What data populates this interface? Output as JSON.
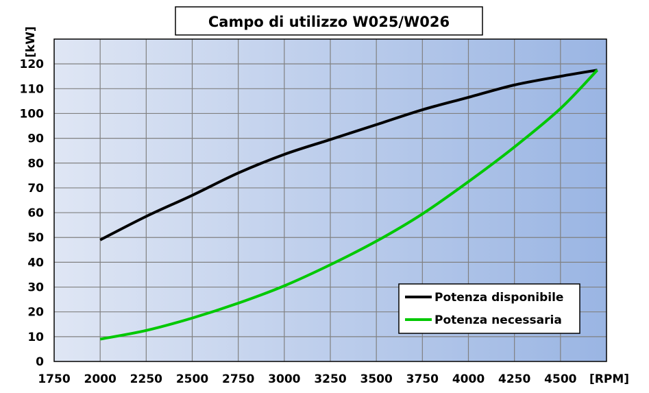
{
  "chart_data": {
    "type": "line",
    "title": "Campo di utilizzo W025/W026",
    "xlabel": "[RPM]",
    "ylabel": "[kW]",
    "xlim": [
      1750,
      4750
    ],
    "ylim": [
      0,
      130
    ],
    "xticks": [
      1750,
      2000,
      2250,
      2500,
      2750,
      3000,
      3250,
      3500,
      3750,
      4000,
      4250,
      4500
    ],
    "yticks": [
      0,
      10,
      20,
      30,
      40,
      50,
      60,
      70,
      80,
      90,
      100,
      110,
      120
    ],
    "grid": true,
    "legend_position": "bottom-right",
    "background": {
      "from": "#dfe6f4",
      "to": "#9ab5e3"
    },
    "series": [
      {
        "name": "Potenza disponibile",
        "color": "#000000",
        "x": [
          2000,
          2250,
          2500,
          2750,
          3000,
          3250,
          3500,
          3750,
          4000,
          4250,
          4500,
          4700
        ],
        "y": [
          49,
          58.5,
          67,
          76,
          83.5,
          89.5,
          95.5,
          101.5,
          106.5,
          111.5,
          115,
          117.5
        ]
      },
      {
        "name": "Potenza necessaria",
        "color": "#00c800",
        "x": [
          2000,
          2250,
          2500,
          2750,
          3000,
          3250,
          3500,
          3750,
          4000,
          4250,
          4500,
          4700
        ],
        "y": [
          9,
          12.5,
          17.5,
          23.5,
          30.5,
          39,
          48.5,
          59.5,
          72.5,
          86.5,
          102,
          117.5
        ]
      }
    ]
  }
}
